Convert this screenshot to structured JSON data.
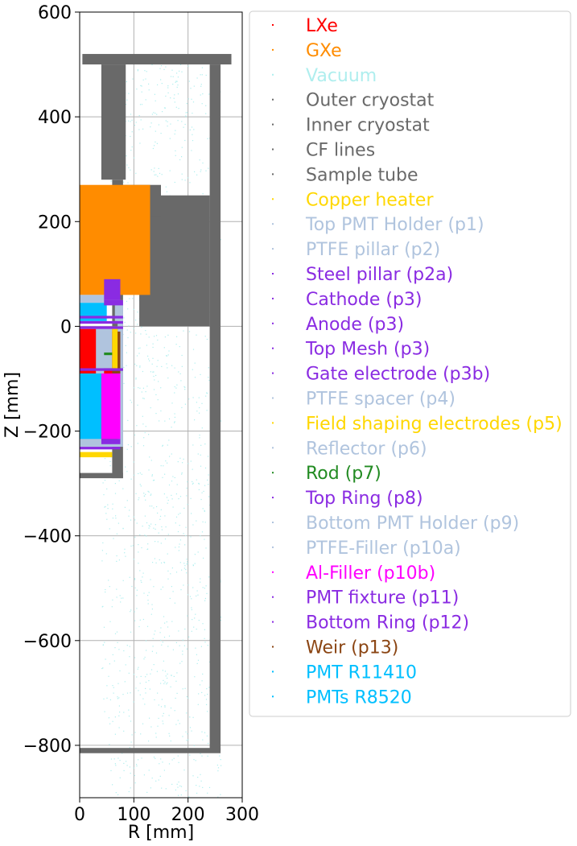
{
  "chart_data": {
    "type": "scatter",
    "title": "",
    "xlabel": "R [mm]",
    "ylabel": "Z [mm]",
    "xlim": [
      0,
      300
    ],
    "ylim": [
      -900,
      600
    ],
    "xticks": [
      0,
      100,
      200,
      300
    ],
    "yticks": [
      -800,
      -600,
      -400,
      -200,
      0,
      200,
      400,
      600
    ],
    "x_tick_labels": [
      "0",
      "100",
      "200",
      "300"
    ],
    "y_tick_labels": [
      "−800",
      "−600",
      "−400",
      "−200",
      "0",
      "200",
      "400",
      "600"
    ],
    "grid": true,
    "legend_position": "right, outside axes",
    "series": [
      {
        "name": "LXe",
        "color": "#ff0000",
        "regions": [
          [
            0,
            75,
            -230,
            -5
          ]
        ]
      },
      {
        "name": "GXe",
        "color": "#ff8c00",
        "regions": [
          [
            0,
            130,
            60,
            270
          ]
        ]
      },
      {
        "name": "Vacuum",
        "color": "#afeeee",
        "regions": [
          [
            40,
            260,
            -900,
            520
          ]
        ]
      },
      {
        "name": "Outer cryostat",
        "color": "#696969",
        "regions": [
          [
            5,
            280,
            500,
            520
          ],
          [
            240,
            260,
            -810,
            500
          ],
          [
            0,
            260,
            -815,
            -805
          ]
        ]
      },
      {
        "name": "Inner cryostat",
        "color": "#696969",
        "regions": [
          [
            40,
            85,
            280,
            500
          ],
          [
            60,
            80,
            -290,
            280
          ],
          [
            0,
            80,
            -290,
            -280
          ]
        ]
      },
      {
        "name": "CF lines",
        "color": "#696969",
        "regions": [
          [
            110,
            240,
            0,
            250
          ]
        ]
      },
      {
        "name": "Sample tube",
        "color": "#696969",
        "regions": [
          [
            75,
            150,
            210,
            270
          ]
        ]
      },
      {
        "name": "Copper heater",
        "color": "#ffd700",
        "regions": [
          [
            0,
            60,
            -250,
            -240
          ]
        ]
      },
      {
        "name": "Top PMT Holder (p1)",
        "color": "#b0c4de",
        "regions": [
          [
            0,
            75,
            45,
            60
          ]
        ]
      },
      {
        "name": "PTFE pillar (p2)",
        "color": "#b0c4de",
        "regions": [
          [
            70,
            80,
            -230,
            50
          ]
        ]
      },
      {
        "name": "Steel pillar (p2a)",
        "color": "#8a2be2",
        "regions": [
          [
            45,
            75,
            50,
            90
          ]
        ]
      },
      {
        "name": "Cathode (p3)",
        "color": "#8a2be2",
        "regions": [
          [
            0,
            80,
            -85,
            -80
          ]
        ]
      },
      {
        "name": "Anode (p3)",
        "color": "#8a2be2",
        "regions": [
          [
            0,
            80,
            5,
            10
          ]
        ]
      },
      {
        "name": "Top Mesh (p3)",
        "color": "#8a2be2",
        "regions": [
          [
            0,
            80,
            15,
            20
          ]
        ]
      },
      {
        "name": "Gate electrode (p3b)",
        "color": "#8a2be2",
        "regions": [
          [
            0,
            80,
            -5,
            0
          ]
        ]
      },
      {
        "name": "PTFE spacer (p4)",
        "color": "#b0c4de",
        "regions": [
          [
            65,
            80,
            10,
            45
          ]
        ]
      },
      {
        "name": "Field shaping electrodes (p5)",
        "color": "#ffd700",
        "regions": [
          [
            60,
            70,
            -80,
            0
          ]
        ]
      },
      {
        "name": "Reflector (p6)",
        "color": "#b0c4de",
        "regions": [
          [
            40,
            60,
            -80,
            0
          ]
        ]
      },
      {
        "name": "Rod (p7)",
        "color": "#228b22",
        "regions": [
          [
            45,
            60,
            -55,
            -50
          ]
        ]
      },
      {
        "name": "Top Ring (p8)",
        "color": "#8a2be2",
        "regions": [
          [
            45,
            80,
            40,
            50
          ]
        ]
      },
      {
        "name": "Bottom PMT Holder (p9)",
        "color": "#b0c4de",
        "regions": [
          [
            0,
            75,
            -230,
            -215
          ]
        ]
      },
      {
        "name": "PTFE-Filler (p10a)",
        "color": "#b0c4de",
        "regions": [
          [
            30,
            45,
            -90,
            0
          ]
        ]
      },
      {
        "name": "Al-Filler (p10b)",
        "color": "#ff00ff",
        "regions": [
          [
            40,
            75,
            -215,
            -90
          ]
        ]
      },
      {
        "name": "PMT fixture (p11)",
        "color": "#8a2be2",
        "regions": [
          [
            0,
            75,
            -235,
            -230
          ]
        ]
      },
      {
        "name": "Bottom Ring (p12)",
        "color": "#8a2be2",
        "regions": [
          [
            40,
            75,
            -225,
            -215
          ]
        ]
      },
      {
        "name": "Weir (p13)",
        "color": "#8b4513",
        "regions": [
          [
            60,
            75,
            -90,
            -10
          ]
        ]
      },
      {
        "name": "PMT R11410",
        "color": "#00bfff",
        "regions": [
          [
            0,
            40,
            -220,
            -90
          ]
        ]
      },
      {
        "name": "PMTs R8520",
        "color": "#00bfff",
        "regions": [
          [
            0,
            50,
            10,
            45
          ]
        ]
      }
    ]
  }
}
